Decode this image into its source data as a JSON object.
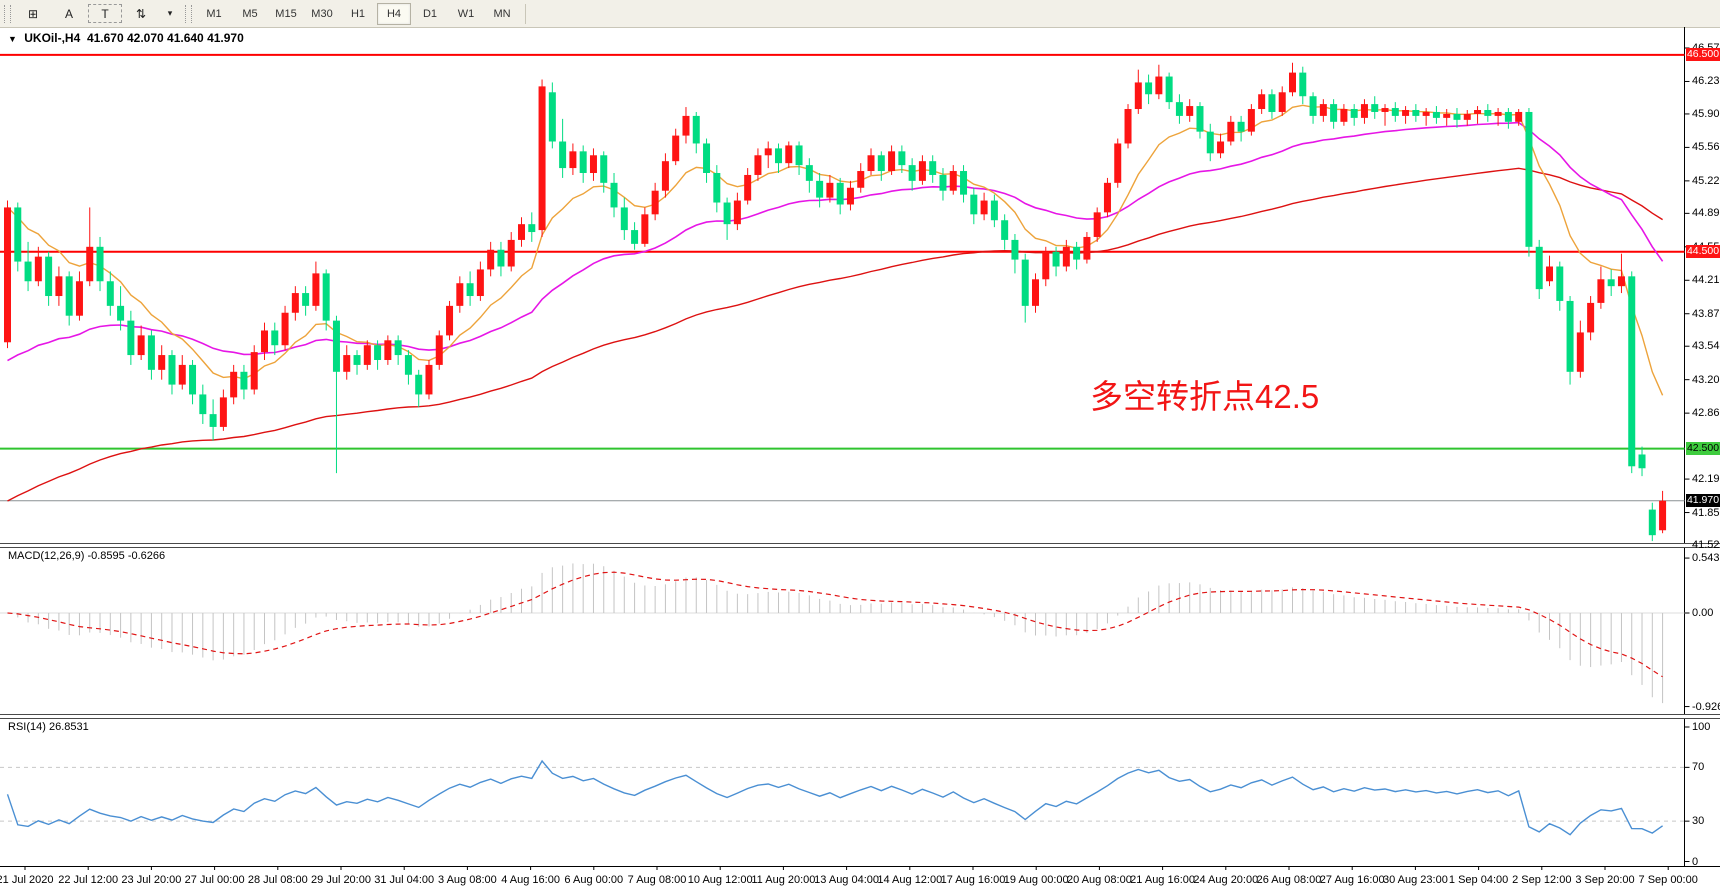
{
  "toolbar": {
    "tools": [
      {
        "name": "grid-snap-icon",
        "glyph": "⊞"
      },
      {
        "name": "font-tool-icon",
        "glyph": "A"
      },
      {
        "name": "text-label-tool-icon",
        "glyph": "T"
      },
      {
        "name": "cursor-tools-icon",
        "glyph": "⇅"
      },
      {
        "name": "dropdown-arrow-icon",
        "glyph": "▾"
      }
    ],
    "timeframes": [
      "M1",
      "M5",
      "M15",
      "M30",
      "H1",
      "H4",
      "D1",
      "W1",
      "MN"
    ],
    "active_timeframe": "H4"
  },
  "title": {
    "symbol": "UKOil-,H4",
    "ohlc": "41.670 42.070 41.640 41.970"
  },
  "annotation": {
    "text": "多空转折点42.5",
    "color": "#f21515"
  },
  "price_axis": {
    "ticks": [
      {
        "text": "46.570",
        "price": 46.57
      },
      {
        "text": "46.230",
        "price": 46.23
      },
      {
        "text": "45.900",
        "price": 45.9
      },
      {
        "text": "45.560",
        "price": 45.56
      },
      {
        "text": "45.220",
        "price": 45.22
      },
      {
        "text": "44.890",
        "price": 44.89
      },
      {
        "text": "44.550",
        "price": 44.55
      },
      {
        "text": "44.210",
        "price": 44.21
      },
      {
        "text": "43.870",
        "price": 43.87
      },
      {
        "text": "43.540",
        "price": 43.54
      },
      {
        "text": "43.200",
        "price": 43.2
      },
      {
        "text": "42.860",
        "price": 42.86
      },
      {
        "text": "42.190",
        "price": 42.19
      },
      {
        "text": "41.850",
        "price": 41.85
      },
      {
        "text": "41.520",
        "price": 41.52
      }
    ],
    "tags": [
      {
        "text": "46.500",
        "price": 46.5,
        "bg": "#fe1414",
        "fg": "#ffffff"
      },
      {
        "text": "44.500",
        "price": 44.5,
        "bg": "#fe1414",
        "fg": "#ffffff"
      },
      {
        "text": "42.500",
        "price": 42.5,
        "bg": "#3ecc3e",
        "fg": "#000000"
      },
      {
        "text": "41.970",
        "price": 41.97,
        "bg": "#000000",
        "fg": "#ffffff"
      }
    ]
  },
  "hlines": [
    {
      "price": 46.5,
      "color": "#fe0000",
      "w": 2
    },
    {
      "price": 44.5,
      "color": "#fe0000",
      "w": 2
    },
    {
      "price": 42.5,
      "color": "#2fc42f",
      "w": 2
    },
    {
      "price": 41.97,
      "color": "#8a9094",
      "w": 1
    }
  ],
  "panels": {
    "macd": {
      "label": "MACD(12,26,9) -0.8595 -0.6266",
      "ticks": [
        {
          "text": "0.5439",
          "v": 0.5439
        },
        {
          "text": "0.00",
          "v": 0
        },
        {
          "text": "-0.9263",
          "v": -0.9263
        }
      ]
    },
    "rsi": {
      "label": "RSI(14) 26.8531",
      "ticks": [
        {
          "text": "100",
          "v": 100
        },
        {
          "text": "70",
          "v": 70
        },
        {
          "text": "30",
          "v": 30
        },
        {
          "text": "0",
          "v": 0
        }
      ],
      "levels": [
        70,
        30
      ]
    }
  },
  "time_axis": [
    "21 Jul 2020",
    "22 Jul 12:00",
    "23 Jul 20:00",
    "27 Jul 00:00",
    "28 Jul 08:00",
    "29 Jul 20:00",
    "31 Jul 04:00",
    "3 Aug 08:00",
    "4 Aug 16:00",
    "6 Aug 00:00",
    "7 Aug 08:00",
    "10 Aug 12:00",
    "11 Aug 20:00",
    "13 Aug 04:00",
    "14 Aug 12:00",
    "17 Aug 16:00",
    "19 Aug 00:00",
    "20 Aug 08:00",
    "21 Aug 16:00",
    "24 Aug 20:00",
    "26 Aug 08:00",
    "27 Aug 16:00",
    "30 Aug 23:00",
    "1 Sep 04:00",
    "2 Sep 12:00",
    "3 Sep 20:00",
    "7 Sep 00:00"
  ],
  "colors": {
    "bull": "#fe1414",
    "bear": "#00dc82",
    "ma_fast": "#eda33b",
    "ma_mid": "#e616e6",
    "ma_slow": "#dd1111",
    "macd_hist": "#c4c4c4",
    "macd_signal": "#e01414",
    "rsi_line": "#4a8fd3",
    "level_dash": "#c8c8c8"
  },
  "chart_data": {
    "type": "candlestick",
    "symbol": "UKOil-",
    "timeframe": "H4",
    "ohlc_current": {
      "open": 41.67,
      "high": 42.07,
      "low": 41.64,
      "close": 41.97
    },
    "indicators": {
      "macd": [
        12,
        26,
        9
      ],
      "rsi": 14
    },
    "candles": [
      [
        43.58,
        45.02,
        43.52,
        44.95
      ],
      [
        44.95,
        45.0,
        44.3,
        44.4
      ],
      [
        44.4,
        44.6,
        44.1,
        44.2
      ],
      [
        44.2,
        44.55,
        44.15,
        44.45
      ],
      [
        44.45,
        44.5,
        43.95,
        44.05
      ],
      [
        44.05,
        44.35,
        43.95,
        44.25
      ],
      [
        44.25,
        44.3,
        43.75,
        43.85
      ],
      [
        43.85,
        44.3,
        43.8,
        44.2
      ],
      [
        44.2,
        44.95,
        44.15,
        44.55
      ],
      [
        44.55,
        44.65,
        44.1,
        44.2
      ],
      [
        44.2,
        44.3,
        43.85,
        43.95
      ],
      [
        43.95,
        44.15,
        43.7,
        43.8
      ],
      [
        43.8,
        43.9,
        43.35,
        43.45
      ],
      [
        43.45,
        43.75,
        43.4,
        43.65
      ],
      [
        43.65,
        43.7,
        43.2,
        43.3
      ],
      [
        43.3,
        43.55,
        43.2,
        43.45
      ],
      [
        43.45,
        43.5,
        43.05,
        43.15
      ],
      [
        43.15,
        43.45,
        43.1,
        43.35
      ],
      [
        43.35,
        43.4,
        42.95,
        43.05
      ],
      [
        43.05,
        43.15,
        42.75,
        42.85
      ],
      [
        42.85,
        43.0,
        42.58,
        42.72
      ],
      [
        42.72,
        43.1,
        42.68,
        43.02
      ],
      [
        43.02,
        43.35,
        42.95,
        43.28
      ],
      [
        43.28,
        43.35,
        43.0,
        43.1
      ],
      [
        43.1,
        43.55,
        43.05,
        43.48
      ],
      [
        43.48,
        43.78,
        43.4,
        43.7
      ],
      [
        43.7,
        43.78,
        43.45,
        43.55
      ],
      [
        43.55,
        43.95,
        43.5,
        43.88
      ],
      [
        43.88,
        44.15,
        43.8,
        44.08
      ],
      [
        44.08,
        44.15,
        43.85,
        43.95
      ],
      [
        43.95,
        44.4,
        43.9,
        44.28
      ],
      [
        44.28,
        44.32,
        43.7,
        43.8
      ],
      [
        43.8,
        43.85,
        42.25,
        43.28
      ],
      [
        43.28,
        43.55,
        43.2,
        43.45
      ],
      [
        43.45,
        43.5,
        43.25,
        43.35
      ],
      [
        43.35,
        43.6,
        43.3,
        43.55
      ],
      [
        43.55,
        43.6,
        43.3,
        43.4
      ],
      [
        43.4,
        43.65,
        43.35,
        43.6
      ],
      [
        43.6,
        43.65,
        43.35,
        43.45
      ],
      [
        43.45,
        43.5,
        43.15,
        43.25
      ],
      [
        43.25,
        43.3,
        42.92,
        43.05
      ],
      [
        43.05,
        43.4,
        43.0,
        43.35
      ],
      [
        43.35,
        43.7,
        43.3,
        43.65
      ],
      [
        43.65,
        44.0,
        43.6,
        43.95
      ],
      [
        43.95,
        44.25,
        43.88,
        44.18
      ],
      [
        44.18,
        44.3,
        43.95,
        44.05
      ],
      [
        44.05,
        44.4,
        44.0,
        44.32
      ],
      [
        44.32,
        44.6,
        44.25,
        44.52
      ],
      [
        44.52,
        44.6,
        44.25,
        44.35
      ],
      [
        44.35,
        44.7,
        44.3,
        44.62
      ],
      [
        44.62,
        44.85,
        44.55,
        44.78
      ],
      [
        44.78,
        44.9,
        44.6,
        44.7
      ],
      [
        44.72,
        46.25,
        44.65,
        46.18
      ],
      [
        46.12,
        46.22,
        45.55,
        45.62
      ],
      [
        45.62,
        45.85,
        45.25,
        45.35
      ],
      [
        45.35,
        45.6,
        45.28,
        45.52
      ],
      [
        45.52,
        45.58,
        45.2,
        45.3
      ],
      [
        45.3,
        45.55,
        45.22,
        45.48
      ],
      [
        45.48,
        45.52,
        45.1,
        45.2
      ],
      [
        45.2,
        45.3,
        44.85,
        44.95
      ],
      [
        44.95,
        45.05,
        44.62,
        44.72
      ],
      [
        44.72,
        44.8,
        44.52,
        44.58
      ],
      [
        44.58,
        44.95,
        44.55,
        44.88
      ],
      [
        44.88,
        45.2,
        44.82,
        45.12
      ],
      [
        45.12,
        45.5,
        45.05,
        45.42
      ],
      [
        45.42,
        45.75,
        45.38,
        45.68
      ],
      [
        45.68,
        45.97,
        45.6,
        45.88
      ],
      [
        45.88,
        45.92,
        45.5,
        45.6
      ],
      [
        45.6,
        45.65,
        45.2,
        45.3
      ],
      [
        45.3,
        45.38,
        44.9,
        45.0
      ],
      [
        45.0,
        45.05,
        44.62,
        44.78
      ],
      [
        44.78,
        45.1,
        44.72,
        45.02
      ],
      [
        45.02,
        45.35,
        44.98,
        45.28
      ],
      [
        45.28,
        45.55,
        45.22,
        45.48
      ],
      [
        45.48,
        45.62,
        45.35,
        45.55
      ],
      [
        45.55,
        45.6,
        45.3,
        45.4
      ],
      [
        45.4,
        45.62,
        45.35,
        45.58
      ],
      [
        45.58,
        45.62,
        45.28,
        45.38
      ],
      [
        45.38,
        45.45,
        45.1,
        45.22
      ],
      [
        45.22,
        45.3,
        44.95,
        45.05
      ],
      [
        45.05,
        45.28,
        45.0,
        45.2
      ],
      [
        45.2,
        45.25,
        44.88,
        44.98
      ],
      [
        44.98,
        45.22,
        44.92,
        45.15
      ],
      [
        45.15,
        45.4,
        45.1,
        45.32
      ],
      [
        45.32,
        45.55,
        45.28,
        45.48
      ],
      [
        45.48,
        45.52,
        45.22,
        45.32
      ],
      [
        45.32,
        45.58,
        45.28,
        45.52
      ],
      [
        45.52,
        45.58,
        45.3,
        45.38
      ],
      [
        45.38,
        45.45,
        45.12,
        45.22
      ],
      [
        45.22,
        45.48,
        45.18,
        45.42
      ],
      [
        45.42,
        45.48,
        45.2,
        45.28
      ],
      [
        45.28,
        45.35,
        45.02,
        45.12
      ],
      [
        45.12,
        45.38,
        45.08,
        45.32
      ],
      [
        45.32,
        45.38,
        45.0,
        45.08
      ],
      [
        45.08,
        45.15,
        44.78,
        44.88
      ],
      [
        44.88,
        45.1,
        44.82,
        45.02
      ],
      [
        45.02,
        45.08,
        44.75,
        44.82
      ],
      [
        44.82,
        44.88,
        44.52,
        44.62
      ],
      [
        44.62,
        44.68,
        44.28,
        44.42
      ],
      [
        44.42,
        44.48,
        43.78,
        43.95
      ],
      [
        43.95,
        44.28,
        43.88,
        44.22
      ],
      [
        44.22,
        44.55,
        44.15,
        44.5
      ],
      [
        44.5,
        44.55,
        44.25,
        44.35
      ],
      [
        44.35,
        44.62,
        44.3,
        44.55
      ],
      [
        44.55,
        44.6,
        44.32,
        44.42
      ],
      [
        44.42,
        44.7,
        44.38,
        44.65
      ],
      [
        44.65,
        44.95,
        44.6,
        44.9
      ],
      [
        44.9,
        45.25,
        44.85,
        45.2
      ],
      [
        45.2,
        45.65,
        45.15,
        45.6
      ],
      [
        45.6,
        46.0,
        45.55,
        45.95
      ],
      [
        45.95,
        46.35,
        45.9,
        46.22
      ],
      [
        46.22,
        46.3,
        46.0,
        46.1
      ],
      [
        46.1,
        46.4,
        46.05,
        46.28
      ],
      [
        46.28,
        46.32,
        45.95,
        46.02
      ],
      [
        46.02,
        46.1,
        45.8,
        45.88
      ],
      [
        45.88,
        46.05,
        45.82,
        45.98
      ],
      [
        45.98,
        46.02,
        45.65,
        45.72
      ],
      [
        45.72,
        45.8,
        45.42,
        45.5
      ],
      [
        45.5,
        45.7,
        45.45,
        45.62
      ],
      [
        45.62,
        45.88,
        45.58,
        45.82
      ],
      [
        45.82,
        45.88,
        45.62,
        45.72
      ],
      [
        45.72,
        46.0,
        45.68,
        45.95
      ],
      [
        45.95,
        46.15,
        45.9,
        46.1
      ],
      [
        46.1,
        46.15,
        45.85,
        45.92
      ],
      [
        45.92,
        46.18,
        45.88,
        46.12
      ],
      [
        46.12,
        46.42,
        46.08,
        46.32
      ],
      [
        46.32,
        46.38,
        46.0,
        46.08
      ],
      [
        46.08,
        46.12,
        45.8,
        45.88
      ],
      [
        45.88,
        46.05,
        45.82,
        46.0
      ],
      [
        46.0,
        46.05,
        45.75,
        45.82
      ],
      [
        45.82,
        46.0,
        45.78,
        45.95
      ],
      [
        45.95,
        46.0,
        45.78,
        45.86
      ],
      [
        45.86,
        46.05,
        45.8,
        46.0
      ],
      [
        46.0,
        46.08,
        45.85,
        45.92
      ],
      [
        45.92,
        46.0,
        45.78,
        45.96
      ],
      [
        45.96,
        46.02,
        45.82,
        45.88
      ],
      [
        45.88,
        45.98,
        45.8,
        45.94
      ],
      [
        45.94,
        46.0,
        45.82,
        45.88
      ],
      [
        45.88,
        45.96,
        45.78,
        45.92
      ],
      [
        45.92,
        45.98,
        45.8,
        45.86
      ],
      [
        45.86,
        45.95,
        45.78,
        45.9
      ],
      [
        45.9,
        45.96,
        45.76,
        45.84
      ],
      [
        45.84,
        45.94,
        45.78,
        45.9
      ],
      [
        45.9,
        45.98,
        45.8,
        45.94
      ],
      [
        45.94,
        46.0,
        45.82,
        45.88
      ],
      [
        45.88,
        45.96,
        45.78,
        45.92
      ],
      [
        45.92,
        45.96,
        45.75,
        45.82
      ],
      [
        45.82,
        45.95,
        45.78,
        45.92
      ],
      [
        45.92,
        45.96,
        44.45,
        44.55
      ],
      [
        44.55,
        44.62,
        44.02,
        44.12
      ],
      [
        44.2,
        44.46,
        44.15,
        44.35
      ],
      [
        44.35,
        44.4,
        43.9,
        44.0
      ],
      [
        44.0,
        44.05,
        43.15,
        43.28
      ],
      [
        43.28,
        43.8,
        43.22,
        43.68
      ],
      [
        43.68,
        44.05,
        43.6,
        43.98
      ],
      [
        43.98,
        44.35,
        43.92,
        44.22
      ],
      [
        44.22,
        44.32,
        44.05,
        44.15
      ],
      [
        44.15,
        44.48,
        44.08,
        44.25
      ],
      [
        44.25,
        44.3,
        42.25,
        42.32
      ],
      [
        42.44,
        42.52,
        42.22,
        42.3
      ],
      [
        41.88,
        41.95,
        41.56,
        41.62
      ],
      [
        41.67,
        42.07,
        41.64,
        41.97
      ]
    ]
  }
}
